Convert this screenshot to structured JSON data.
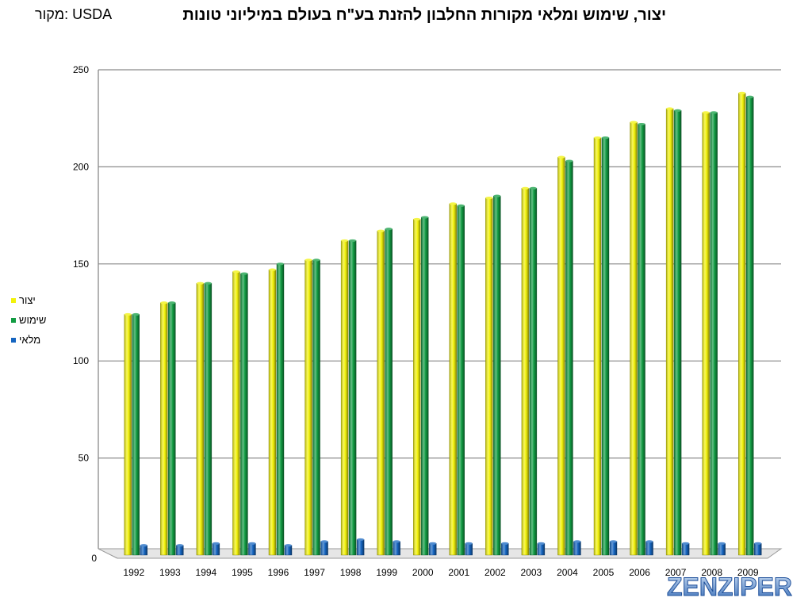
{
  "title": "יצור, שימוש ומלאי מקורות החלבון להזנת בע\"ח בעולם במיליוני טונות",
  "source": "מקור: USDA",
  "watermark": "ZENZIPER",
  "chart_data": {
    "type": "bar",
    "categories": [
      "1992",
      "1993",
      "1994",
      "1995",
      "1996",
      "1997",
      "1998",
      "1999",
      "2000",
      "2001",
      "2002",
      "2003",
      "2004",
      "2005",
      "2006",
      "2007",
      "2008",
      "2009"
    ],
    "series": [
      {
        "name": "יצור",
        "color": "#f2f20a",
        "values": [
          124,
          130,
          140,
          146,
          147,
          152,
          162,
          167,
          173,
          181,
          184,
          189,
          205,
          215,
          223,
          230,
          228,
          238
        ]
      },
      {
        "name": "שימוש",
        "color": "#129c43",
        "values": [
          124,
          130,
          140,
          145,
          150,
          152,
          162,
          168,
          174,
          180,
          185,
          189,
          203,
          215,
          222,
          229,
          228,
          236
        ]
      },
      {
        "name": "מלאי",
        "color": "#1565c0",
        "values": [
          5,
          5,
          6,
          6,
          5,
          7,
          8,
          7,
          6,
          6,
          6,
          6,
          7,
          7,
          7,
          6,
          6,
          6
        ]
      }
    ],
    "yticks": [
      0,
      50,
      100,
      150,
      200,
      250
    ],
    "ylim": [
      0,
      250
    ],
    "grid": true,
    "legend_position": "left"
  }
}
